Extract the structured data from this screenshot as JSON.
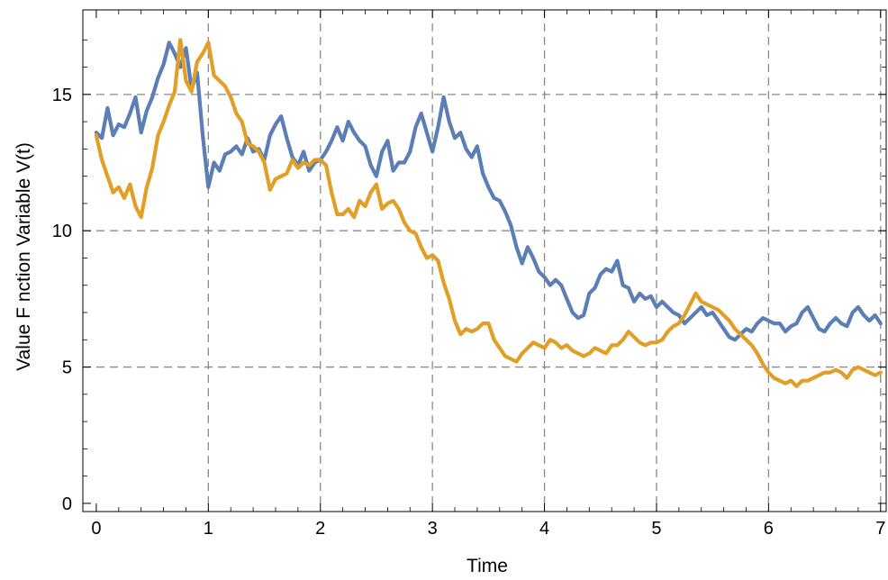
{
  "chart_data": {
    "type": "line",
    "title": "",
    "xlabel": "Time",
    "ylabel": "Value F  nction Variable V(t)",
    "xlim": [
      -0.12,
      7.05
    ],
    "ylim": [
      -0.3,
      18.1
    ],
    "x_ticks": [
      "0",
      "1",
      "2",
      "3",
      "4",
      "5",
      "6",
      "7"
    ],
    "y_ticks": [
      "0",
      "5",
      "10",
      "15"
    ],
    "grid": true,
    "legend": "none",
    "colors": {
      "series_1": "#5b7fb4",
      "series_2": "#e29f27",
      "grid": "#8a8a8a",
      "frame": "#000000"
    },
    "series": [
      {
        "color": "#5b7fb4",
        "x": [
          0,
          0.05,
          0.1,
          0.15,
          0.2,
          0.25,
          0.3,
          0.35,
          0.4,
          0.45,
          0.5,
          0.55,
          0.6,
          0.65,
          0.7,
          0.75,
          0.8,
          0.85,
          0.9,
          0.95,
          1.0,
          1.05,
          1.1,
          1.15,
          1.2,
          1.25,
          1.3,
          1.35,
          1.4,
          1.45,
          1.5,
          1.55,
          1.6,
          1.65,
          1.7,
          1.75,
          1.8,
          1.85,
          1.9,
          1.95,
          2.0,
          2.05,
          2.1,
          2.15,
          2.2,
          2.25,
          2.3,
          2.35,
          2.4,
          2.45,
          2.5,
          2.55,
          2.6,
          2.65,
          2.7,
          2.75,
          2.8,
          2.85,
          2.9,
          2.95,
          3.0,
          3.05,
          3.1,
          3.15,
          3.2,
          3.25,
          3.3,
          3.35,
          3.4,
          3.45,
          3.5,
          3.55,
          3.6,
          3.65,
          3.7,
          3.75,
          3.8,
          3.85,
          3.9,
          3.95,
          4.0,
          4.05,
          4.1,
          4.15,
          4.2,
          4.25,
          4.3,
          4.35,
          4.4,
          4.45,
          4.5,
          4.55,
          4.6,
          4.65,
          4.7,
          4.75,
          4.8,
          4.85,
          4.9,
          4.95,
          5.0,
          5.05,
          5.1,
          5.15,
          5.2,
          5.25,
          5.3,
          5.35,
          5.4,
          5.45,
          5.5,
          5.55,
          5.6,
          5.65,
          5.7,
          5.75,
          5.8,
          5.85,
          5.9,
          5.95,
          6.0,
          6.05,
          6.1,
          6.15,
          6.2,
          6.25,
          6.3,
          6.35,
          6.4,
          6.45,
          6.5,
          6.55,
          6.6,
          6.65,
          6.7,
          6.75,
          6.8,
          6.85,
          6.9,
          6.95,
          7.0
        ],
        "y": [
          13.6,
          13.4,
          14.5,
          13.5,
          13.9,
          13.8,
          14.3,
          14.9,
          13.6,
          14.4,
          14.9,
          15.6,
          16.1,
          16.9,
          16.5,
          16.0,
          16.7,
          15.2,
          15.8,
          13.5,
          11.6,
          12.5,
          12.2,
          12.8,
          12.9,
          13.1,
          12.8,
          13.4,
          12.9,
          13.0,
          12.6,
          13.5,
          13.9,
          14.2,
          13.4,
          12.7,
          12.4,
          12.9,
          12.2,
          12.5,
          12.6,
          12.9,
          13.3,
          13.8,
          13.3,
          14.0,
          13.6,
          13.3,
          13.1,
          12.4,
          12.0,
          12.9,
          13.3,
          12.2,
          12.5,
          12.5,
          12.9,
          13.8,
          14.3,
          13.6,
          12.9,
          13.8,
          14.9,
          14.0,
          13.4,
          13.6,
          13.0,
          12.7,
          13.1,
          12.1,
          11.6,
          11.2,
          11.1,
          10.7,
          10.2,
          9.4,
          8.8,
          9.4,
          9.0,
          8.5,
          8.3,
          8.0,
          8.2,
          8.0,
          7.5,
          7.0,
          6.8,
          6.9,
          7.7,
          7.9,
          8.4,
          8.6,
          8.5,
          8.9,
          8.0,
          7.9,
          7.4,
          7.7,
          7.5,
          7.6,
          7.2,
          7.4,
          7.2,
          7.0,
          6.9,
          6.6,
          6.8,
          7.0,
          7.2,
          6.9,
          7.0,
          6.7,
          6.4,
          6.1,
          6.0,
          6.2,
          6.4,
          6.3,
          6.6,
          6.8,
          6.7,
          6.6,
          6.6,
          6.3,
          6.5,
          6.6,
          7.0,
          7.2,
          6.8,
          6.4,
          6.3,
          6.6,
          6.8,
          6.6,
          6.5,
          7.0,
          7.2,
          6.9,
          6.7,
          6.9,
          6.6
        ]
      },
      {
        "color": "#e29f27",
        "x": [
          0,
          0.05,
          0.1,
          0.15,
          0.2,
          0.25,
          0.3,
          0.35,
          0.4,
          0.45,
          0.5,
          0.55,
          0.6,
          0.65,
          0.7,
          0.75,
          0.8,
          0.85,
          0.9,
          0.95,
          1.0,
          1.05,
          1.1,
          1.15,
          1.2,
          1.25,
          1.3,
          1.35,
          1.4,
          1.45,
          1.5,
          1.55,
          1.6,
          1.65,
          1.7,
          1.75,
          1.8,
          1.85,
          1.9,
          1.95,
          2.0,
          2.05,
          2.1,
          2.15,
          2.2,
          2.25,
          2.3,
          2.35,
          2.4,
          2.45,
          2.5,
          2.55,
          2.6,
          2.65,
          2.7,
          2.75,
          2.8,
          2.85,
          2.9,
          2.95,
          3.0,
          3.05,
          3.1,
          3.15,
          3.2,
          3.25,
          3.3,
          3.35,
          3.4,
          3.45,
          3.5,
          3.55,
          3.6,
          3.65,
          3.7,
          3.75,
          3.8,
          3.85,
          3.9,
          3.95,
          4.0,
          4.05,
          4.1,
          4.15,
          4.2,
          4.25,
          4.3,
          4.35,
          4.4,
          4.45,
          4.5,
          4.55,
          4.6,
          4.65,
          4.7,
          4.75,
          4.8,
          4.85,
          4.9,
          4.95,
          5.0,
          5.05,
          5.1,
          5.15,
          5.2,
          5.25,
          5.3,
          5.35,
          5.4,
          5.45,
          5.5,
          5.55,
          5.6,
          5.65,
          5.7,
          5.75,
          5.8,
          5.85,
          5.9,
          5.95,
          6.0,
          6.05,
          6.1,
          6.15,
          6.2,
          6.25,
          6.3,
          6.35,
          6.4,
          6.45,
          6.5,
          6.55,
          6.6,
          6.65,
          6.7,
          6.75,
          6.8,
          6.85,
          6.9,
          6.95,
          7.0
        ],
        "y": [
          13.5,
          12.6,
          12.0,
          11.4,
          11.6,
          11.2,
          11.7,
          10.9,
          10.5,
          11.6,
          12.3,
          13.5,
          14.0,
          14.6,
          15.1,
          17.0,
          15.5,
          15.1,
          16.2,
          16.5,
          16.9,
          15.7,
          15.5,
          15.3,
          14.9,
          14.3,
          14.0,
          13.2,
          13.1,
          12.9,
          12.5,
          11.5,
          11.9,
          12.0,
          12.1,
          12.6,
          12.3,
          12.5,
          12.4,
          12.6,
          12.6,
          12.4,
          11.4,
          10.6,
          10.6,
          10.8,
          10.5,
          11.1,
          10.9,
          11.4,
          11.7,
          10.8,
          11.0,
          11.1,
          10.8,
          10.3,
          10.0,
          9.9,
          9.4,
          9.0,
          9.1,
          8.9,
          8.1,
          7.5,
          6.7,
          6.2,
          6.4,
          6.3,
          6.4,
          6.6,
          6.6,
          6.0,
          5.7,
          5.4,
          5.3,
          5.2,
          5.5,
          5.7,
          5.9,
          5.8,
          5.7,
          6.0,
          5.9,
          5.7,
          5.8,
          5.6,
          5.5,
          5.4,
          5.5,
          5.7,
          5.6,
          5.5,
          5.8,
          5.8,
          6.0,
          6.3,
          6.1,
          5.9,
          5.8,
          5.9,
          5.9,
          6.0,
          6.3,
          6.5,
          6.6,
          6.9,
          7.3,
          7.7,
          7.4,
          7.3,
          7.2,
          7.1,
          6.9,
          6.7,
          6.4,
          6.2,
          6.0,
          5.8,
          5.5,
          5.1,
          4.8,
          4.6,
          4.5,
          4.4,
          4.5,
          4.3,
          4.5,
          4.5,
          4.6,
          4.7,
          4.8,
          4.8,
          4.9,
          4.8,
          4.6,
          4.9,
          5.0,
          4.9,
          4.8,
          4.7,
          4.8
        ]
      }
    ]
  }
}
